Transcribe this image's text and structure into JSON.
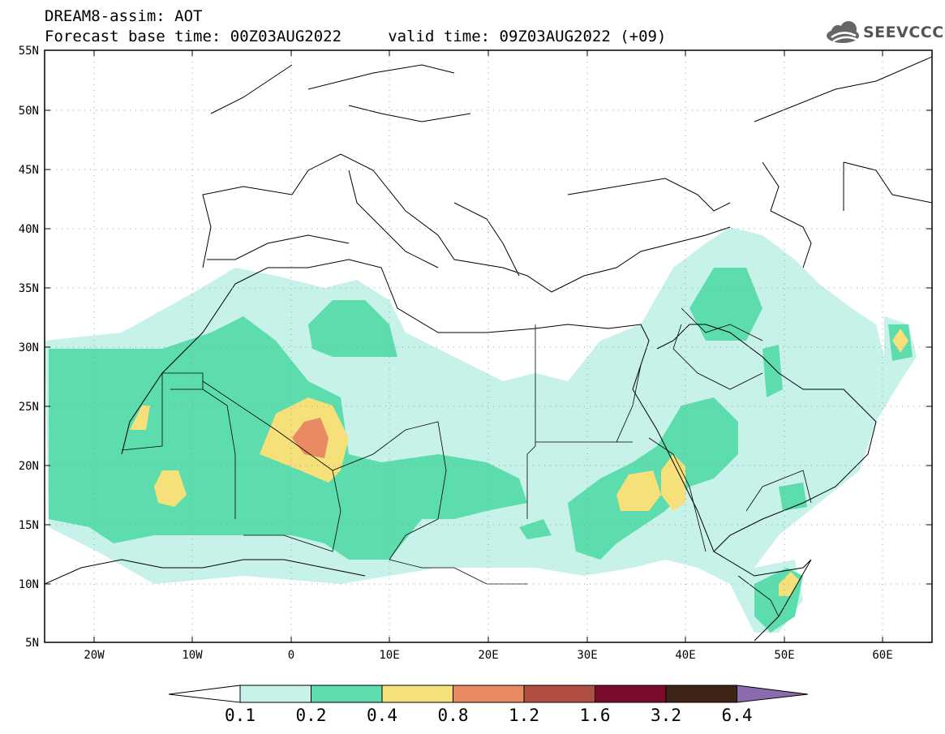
{
  "header": {
    "title_line1": "DREAM8-assim: AOT",
    "title_line2": "Forecast base time: 00Z03AUG2022     valid time: 09Z03AUG2022 (+09)"
  },
  "logo": {
    "text": "SEEVCCC",
    "icon": "cloud-icon"
  },
  "map": {
    "lat_ticks": [
      "55N",
      "50N",
      "45N",
      "40N",
      "35N",
      "30N",
      "25N",
      "20N",
      "15N",
      "10N",
      "5N"
    ],
    "lon_ticks": [
      "20W",
      "10W",
      "0",
      "10E",
      "20E",
      "30E",
      "40E",
      "50E",
      "60E"
    ],
    "lat_range": [
      5,
      55
    ],
    "lon_range": [
      -25,
      65
    ],
    "grid": "dotted"
  },
  "colorbar": {
    "colors": [
      "#ffffff",
      "#c7f2ea",
      "#5ddcad",
      "#f5e07a",
      "#e98a63",
      "#b04f3f",
      "#7c0a2b",
      "#3d2416",
      "#8a6bab"
    ],
    "labels": [
      "0.1",
      "0.2",
      "0.4",
      "0.8",
      "1.2",
      "1.6",
      "3.2",
      "6.4"
    ]
  }
}
